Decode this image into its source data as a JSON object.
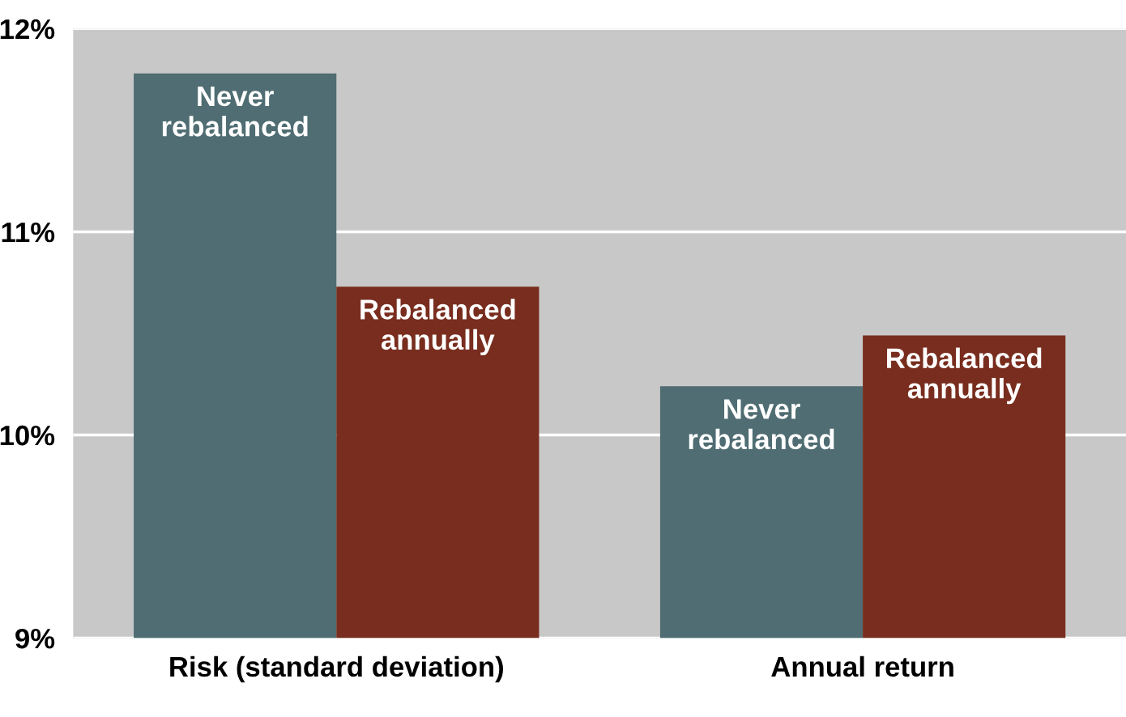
{
  "chart_data": {
    "type": "bar",
    "categories": [
      "Risk (standard deviation)",
      "Annual return"
    ],
    "series": [
      {
        "name": "Never rebalanced",
        "color": "#4f6d72",
        "values": [
          11.78,
          10.24
        ]
      },
      {
        "name": "Rebalanced annually",
        "color": "#782d1e",
        "values": [
          10.73,
          10.49
        ]
      }
    ],
    "ylim": [
      9,
      12
    ],
    "yticks": [
      {
        "value": 9,
        "label": "9%"
      },
      {
        "value": 10,
        "label": "10%"
      },
      {
        "value": 11,
        "label": "11%"
      },
      {
        "value": 12,
        "label": "12%"
      }
    ],
    "grid": "y",
    "legend": false
  }
}
